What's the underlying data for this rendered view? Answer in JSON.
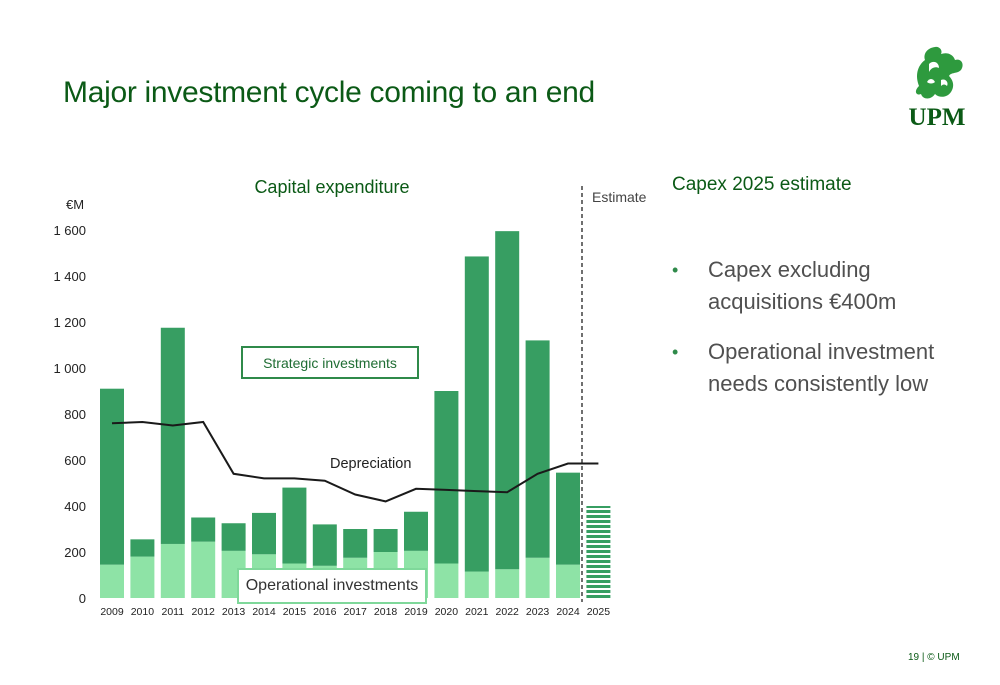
{
  "title": "Major investment cycle coming to an end",
  "logo": {
    "text": "UPM",
    "icon": "griffin-icon"
  },
  "estimate_label": "Estimate",
  "chart_data": {
    "type": "bar",
    "stacked": true,
    "title": "Capital expenditure",
    "ylabel": "€M",
    "ylim": [
      0,
      1600
    ],
    "yticks": [
      0,
      200,
      400,
      600,
      800,
      1000,
      1200,
      1400,
      1600
    ],
    "ytick_labels": [
      "0",
      "200",
      "400",
      "600",
      "800",
      "1 000",
      "1 200",
      "1 400",
      "1 600"
    ],
    "categories": [
      "2009",
      "2010",
      "2011",
      "2012",
      "2013",
      "2014",
      "2015",
      "2016",
      "2017",
      "2018",
      "2019",
      "2020",
      "2021",
      "2022",
      "2023",
      "2024",
      "2025"
    ],
    "series": [
      {
        "name": "Operational investments",
        "color": "#8ee3a6",
        "values": [
          145,
          180,
          235,
          245,
          205,
          190,
          150,
          140,
          175,
          200,
          205,
          150,
          115,
          125,
          175,
          145,
          null
        ]
      },
      {
        "name": "Strategic investments",
        "color": "#379e62",
        "values": [
          765,
          75,
          940,
          105,
          120,
          180,
          330,
          180,
          125,
          100,
          170,
          750,
          1370,
          1470,
          945,
          400,
          null
        ]
      }
    ],
    "estimate": {
      "category": "2025",
      "value": 400,
      "color": "#379e62",
      "pattern": "horizontal-stripes"
    },
    "depreciation": {
      "name": "Depreciation",
      "values": [
        760,
        765,
        750,
        765,
        540,
        520,
        520,
        510,
        450,
        420,
        475,
        470,
        465,
        460,
        540,
        585,
        585
      ],
      "color": "#1a1a1a"
    },
    "grid": false
  },
  "right_panel": {
    "title": "Capex 2025 estimate",
    "bullets": [
      "Capex excluding acquisitions €400m",
      "Operational investment needs consistently low"
    ]
  },
  "footer": "19 | © UPM"
}
